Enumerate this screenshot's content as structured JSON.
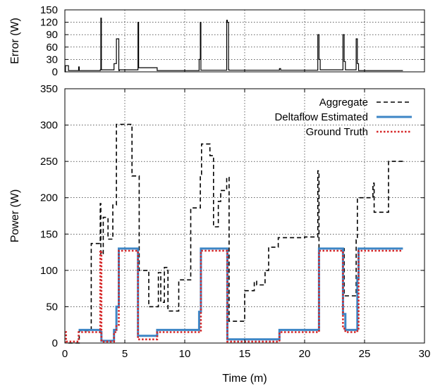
{
  "chart_data": [
    {
      "id": "error-panel",
      "type": "line",
      "xlabel": "",
      "ylabel": "Error (W)",
      "xlim": [
        0,
        30
      ],
      "ylim": [
        0,
        150
      ],
      "xticks": [],
      "yticks": [
        0,
        30,
        60,
        90,
        120,
        150
      ],
      "grid": true,
      "series": [
        {
          "name": "",
          "color": "#000000",
          "style": "solid",
          "x": [
            0,
            0.05,
            0.05,
            0.3,
            0.3,
            1.15,
            1.15,
            1.2,
            1.2,
            2.95,
            2.95,
            3.0,
            3.0,
            3.05,
            3.05,
            4.1,
            4.1,
            4.3,
            4.3,
            4.5,
            4.5,
            4.55,
            4.55,
            6.1,
            6.1,
            6.15,
            6.15,
            6.2,
            6.2,
            7.7,
            7.7,
            11.2,
            11.2,
            11.3,
            11.3,
            11.35,
            11.35,
            13.5,
            13.5,
            13.55,
            13.55,
            13.65,
            13.65,
            13.7,
            13.7,
            17.9,
            17.9,
            18.0,
            18.0,
            21.1,
            21.1,
            21.2,
            21.2,
            21.3,
            21.3,
            23.2,
            23.2,
            23.3,
            23.3,
            23.4,
            23.4,
            24.3,
            24.3,
            24.4,
            24.4,
            24.5,
            24.5,
            28.2
          ],
          "y": [
            0,
            0,
            15,
            15,
            3,
            3,
            12,
            12,
            3,
            3,
            5,
            5,
            130,
            130,
            5,
            5,
            20,
            20,
            80,
            80,
            3,
            3,
            5,
            5,
            120,
            120,
            10,
            10,
            10,
            10,
            3,
            3,
            30,
            30,
            120,
            120,
            4,
            4,
            125,
            125,
            120,
            120,
            5,
            5,
            4,
            4,
            8,
            8,
            4,
            4,
            90,
            90,
            30,
            30,
            5,
            5,
            90,
            90,
            25,
            25,
            5,
            5,
            80,
            80,
            20,
            20,
            3,
            3
          ]
        }
      ]
    },
    {
      "id": "power-panel",
      "type": "line",
      "xlabel": "Time (m)",
      "ylabel": "Power (W)",
      "xlim": [
        0,
        30
      ],
      "ylim": [
        0,
        350
      ],
      "xticks": [
        0,
        5,
        10,
        15,
        20,
        25,
        30
      ],
      "yticks": [
        0,
        50,
        100,
        150,
        200,
        250,
        300,
        350
      ],
      "grid": true,
      "legend": "top-right",
      "series": [
        {
          "name": "Aggregate",
          "color": "#000000",
          "style": "dashed",
          "x": [
            0.3,
            1.2,
            1.2,
            2.2,
            2.2,
            2.8,
            2.8,
            2.95,
            2.95,
            3.0,
            3.0,
            3.2,
            3.2,
            3.6,
            3.6,
            4.0,
            4.0,
            4.3,
            4.3,
            4.5,
            4.5,
            5.5,
            5.5,
            5.6,
            5.6,
            6.2,
            6.2,
            7.0,
            7.0,
            7.8,
            7.8,
            8.0,
            8.0,
            8.3,
            8.3,
            8.6,
            8.6,
            9.5,
            9.5,
            10.5,
            10.5,
            11.3,
            11.3,
            11.4,
            11.4,
            12.1,
            12.1,
            12.4,
            12.4,
            12.8,
            12.8,
            13.0,
            13.0,
            13.5,
            13.5,
            13.7,
            13.7,
            15.0,
            15.0,
            15.8,
            15.8,
            16.0,
            16.0,
            16.7,
            16.7,
            17.0,
            17.0,
            17.8,
            17.8,
            18.0,
            18.0,
            20.0,
            20.0,
            21.1,
            21.1,
            21.2,
            21.2,
            21.3,
            21.3,
            23.3,
            23.3,
            23.4,
            23.4,
            24.3,
            24.3,
            24.4,
            24.4,
            24.5,
            24.5,
            25.7,
            25.7,
            25.8,
            25.8,
            26.0,
            26.0,
            27.0,
            27.0,
            28.2
          ],
          "y": [
            0,
            0,
            17,
            17,
            137,
            137,
            137,
            137,
            192,
            192,
            122,
            122,
            173,
            173,
            143,
            143,
            190,
            190,
            301,
            301,
            301,
            301,
            300,
            300,
            230,
            230,
            100,
            100,
            50,
            50,
            97,
            97,
            56,
            56,
            104,
            104,
            44,
            44,
            87,
            87,
            186,
            186,
            232,
            232,
            274,
            274,
            258,
            258,
            160,
            160,
            195,
            195,
            210,
            210,
            228,
            228,
            30,
            30,
            72,
            72,
            85,
            85,
            80,
            80,
            100,
            100,
            132,
            132,
            145,
            145,
            145,
            145,
            146,
            146,
            237,
            237,
            130,
            130,
            130,
            130,
            65,
            65,
            65,
            65,
            142,
            142,
            200,
            200,
            200,
            200,
            220,
            220,
            180,
            180,
            180,
            180,
            250,
            250
          ]
        },
        {
          "name": "Deltaflow Estimated",
          "color": "#3d86c6",
          "style": "solid",
          "x": [
            1.15,
            2.95,
            2.95,
            3.05,
            3.05,
            4.1,
            4.1,
            4.3,
            4.3,
            4.5,
            4.5,
            6.1,
            6.1,
            7.7,
            7.7,
            11.2,
            11.2,
            11.35,
            11.35,
            13.55,
            13.55,
            17.9,
            17.9,
            21.2,
            21.2,
            23.2,
            23.2,
            23.4,
            23.4,
            24.4,
            24.4,
            24.5,
            24.5,
            28.2
          ],
          "y": [
            18,
            18,
            15,
            15,
            3,
            3,
            18,
            18,
            50,
            50,
            130,
            130,
            10,
            10,
            18,
            18,
            43,
            43,
            130,
            130,
            5,
            5,
            18,
            18,
            130,
            130,
            40,
            40,
            18,
            18,
            90,
            90,
            130,
            130
          ]
        },
        {
          "name": "Ground Truth",
          "color": "#d62728",
          "style": "dotted",
          "x": [
            0,
            0.1,
            0.1,
            1.15,
            1.15,
            2.95,
            2.95,
            3.05,
            3.05,
            4.1,
            4.1,
            4.3,
            4.3,
            4.5,
            4.5,
            6.1,
            6.1,
            7.7,
            7.7,
            11.2,
            11.2,
            11.35,
            11.35,
            13.55,
            13.55,
            17.9,
            17.9,
            21.2,
            21.2,
            23.2,
            23.2,
            23.4,
            23.4,
            24.4,
            24.4,
            24.5,
            24.5,
            28.2
          ],
          "y": [
            15,
            15,
            2,
            2,
            15,
            15,
            127,
            127,
            2,
            2,
            15,
            15,
            25,
            25,
            127,
            127,
            5,
            5,
            15,
            15,
            15,
            15,
            127,
            127,
            2,
            2,
            15,
            15,
            127,
            127,
            20,
            20,
            15,
            15,
            20,
            20,
            127,
            127
          ]
        }
      ]
    }
  ]
}
